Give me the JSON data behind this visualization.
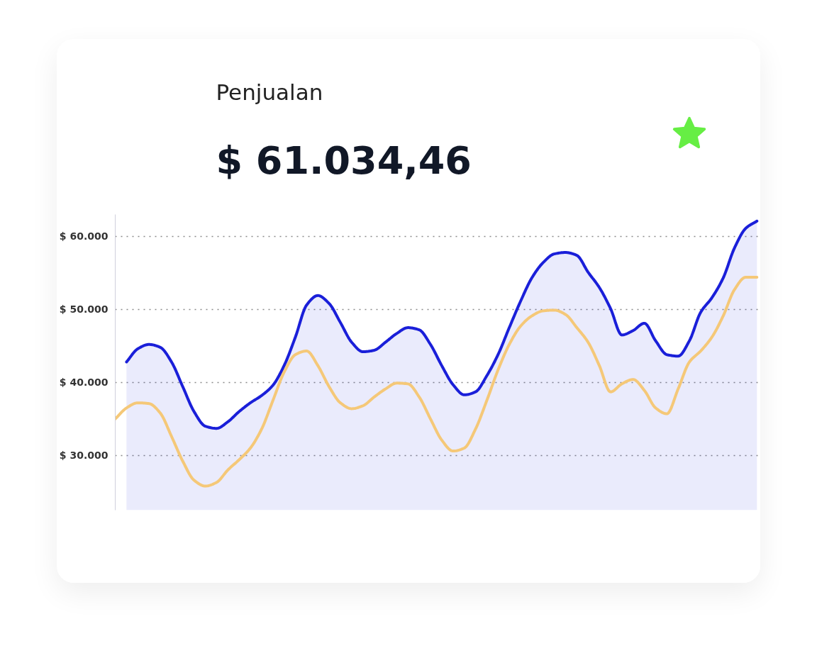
{
  "chart_data": {
    "type": "line",
    "title": "Penjualan",
    "subtitle": "$ 61.034,46",
    "categories": [
      null,
      null,
      null,
      null,
      null,
      null,
      null,
      null,
      null,
      null,
      null,
      null,
      null,
      null,
      null,
      null,
      null,
      null,
      null,
      null,
      null,
      null,
      null,
      null,
      null,
      null,
      null,
      null,
      null,
      null,
      null,
      null,
      null,
      null,
      null,
      null,
      null,
      null,
      null,
      null,
      null,
      null,
      null,
      null,
      null,
      null,
      null,
      null,
      null,
      null,
      null,
      null,
      null,
      null,
      null,
      null,
      null,
      null
    ],
    "series": [
      {
        "type": "area",
        "color": "#1a1fd9",
        "values": [
          null,
          42800,
          44600,
          45200,
          44800,
          42800,
          39400,
          36000,
          34000,
          33700,
          34600,
          36000,
          37200,
          38200,
          39600,
          42300,
          46200,
          50600,
          51900,
          50800,
          48200,
          45500,
          44200,
          44400,
          45500,
          46700,
          47500,
          47200,
          45200,
          42300,
          39700,
          38300,
          38700,
          40900,
          43800,
          47500,
          51100,
          54300,
          56400,
          57600,
          57800,
          57400,
          55100,
          53000,
          50100,
          46500,
          47100,
          48100,
          45700,
          43800,
          43600,
          45700,
          49600,
          51600,
          54300,
          58400,
          61100,
          62100
        ]
      },
      {
        "color": "#f5c878",
        "values": [
          35000,
          36500,
          37200,
          37100,
          35800,
          32600,
          29200,
          26600,
          25800,
          26300,
          28000,
          29400,
          31000,
          33600,
          37500,
          41400,
          43800,
          44300,
          42300,
          39400,
          37200,
          36400,
          36800,
          38000,
          39100,
          39900,
          39800,
          38000,
          35000,
          32100,
          30600,
          31000,
          33600,
          37500,
          41700,
          45200,
          47700,
          49100,
          49800,
          49900,
          49300,
          47500,
          45500,
          42300,
          38700,
          39800,
          40400,
          38900,
          36500,
          35700,
          39100,
          42800,
          44300,
          46200,
          49100,
          52700,
          54400,
          54400
        ]
      }
    ],
    "ylim": [
      22500,
      63000
    ],
    "yticks": [
      {
        "value": 30000,
        "label": "$ 30.000"
      },
      {
        "value": 40000,
        "label": "$ 40.000"
      },
      {
        "value": 50000,
        "label": "$ 50.000"
      },
      {
        "value": 60000,
        "label": "$ 60.000"
      }
    ],
    "grid": "y",
    "tick_labels": "y"
  }
}
